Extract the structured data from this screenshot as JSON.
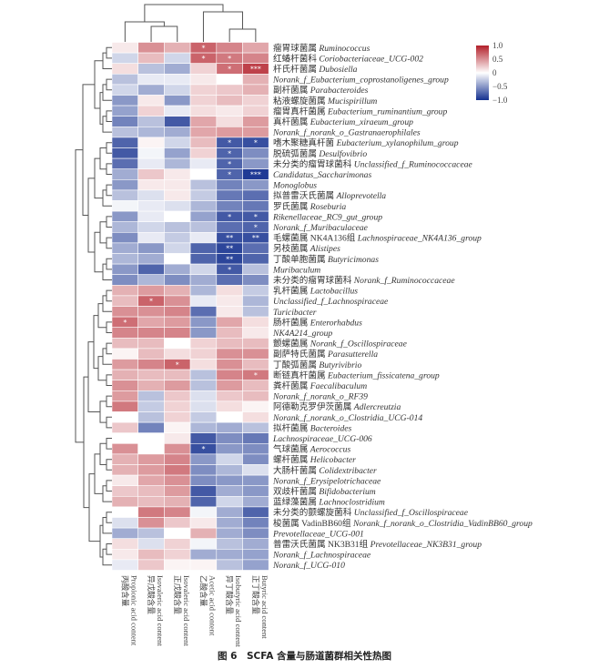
{
  "caption": "图 6　SCFA 含量与肠道菌群相关性热图",
  "chart_data": {
    "type": "heatmap",
    "columns": [
      {
        "cn": "丙酸含量",
        "en": "Propionic acid content"
      },
      {
        "cn": "异戊酸含量",
        "en": "Isovaleric acid content"
      },
      {
        "cn": "正戊酸含量",
        "en": "Isovaleric acid content"
      },
      {
        "cn": "乙酸含量",
        "en": "Acetic acid content"
      },
      {
        "cn": "异丁酸含量",
        "en": "Isobutyric acid content"
      },
      {
        "cn": "正丁酸含量",
        "en": "Butyric acid content"
      }
    ],
    "rows": [
      {
        "cn": "瘤胃球菌属",
        "en": "Ruminococcus",
        "values": [
          0.1,
          0.5,
          0.35,
          0.7,
          0.55,
          0.4
        ],
        "sig": [
          "",
          "",
          "",
          "*",
          "",
          ""
        ]
      },
      {
        "cn": "红蝽杆菌科",
        "en": "Coriobacteriaceae_UCG-002",
        "values": [
          -0.2,
          0.3,
          -0.2,
          0.7,
          0.6,
          0.55
        ],
        "sig": [
          "",
          "",
          "",
          "*",
          "*",
          ""
        ]
      },
      {
        "cn": "杆氏杆菌属",
        "en": "Dubosiella",
        "values": [
          0.15,
          -0.3,
          -0.4,
          0.2,
          0.65,
          0.85
        ],
        "sig": [
          "",
          "",
          "",
          "",
          "*",
          "***"
        ]
      },
      {
        "cn": "",
        "en": "Norank_f_Eubacterium_coprostanoligenes_group",
        "values": [
          -0.3,
          -0.1,
          -0.1,
          0.1,
          0.0,
          0.35
        ],
        "sig": [
          "",
          "",
          "",
          "",
          "",
          ""
        ]
      },
      {
        "cn": "副杆菌属",
        "en": "Parabacteroides",
        "values": [
          -0.2,
          -0.4,
          -0.2,
          0.2,
          0.25,
          0.35
        ],
        "sig": [
          "",
          "",
          "",
          "",
          "",
          ""
        ]
      },
      {
        "cn": "粘液螺旋菌属",
        "en": "Mucispirillum",
        "values": [
          -0.5,
          0.1,
          -0.5,
          0.2,
          0.3,
          0.2
        ],
        "sig": [
          "",
          "",
          "",
          "",
          "",
          ""
        ]
      },
      {
        "cn": "瘤胃真杆菌属",
        "en": "Eubacterium_ruminantium_group",
        "values": [
          -0.45,
          0.2,
          -0.1,
          0.15,
          0.1,
          0.2
        ],
        "sig": [
          "",
          "",
          "",
          "",
          "",
          ""
        ]
      },
      {
        "cn": "真杆菌属",
        "en": "Eubacterium_xiraeum_group",
        "values": [
          -0.6,
          -0.3,
          -0.8,
          0.4,
          0.15,
          0.45
        ],
        "sig": [
          "",
          "",
          "",
          "",
          "",
          ""
        ]
      },
      {
        "cn": "",
        "en": "Norank_f_norank_o_Gastranaerophilales",
        "values": [
          -0.3,
          -0.35,
          -0.4,
          0.4,
          0.45,
          0.45
        ],
        "sig": [
          "",
          "",
          "",
          "",
          "",
          ""
        ]
      },
      {
        "cn": "嗜木聚糖真杆菌",
        "en": "Eubacterium_xylanophilum_group",
        "values": [
          -0.75,
          0.05,
          -0.2,
          0.3,
          -0.8,
          -0.85
        ],
        "sig": [
          "",
          "",
          "",
          "",
          "*",
          "*"
        ]
      },
      {
        "cn": "脱硫弧菌属",
        "en": "Desulfovibrio",
        "values": [
          -0.8,
          -0.05,
          -0.45,
          0.2,
          -0.75,
          -0.55
        ],
        "sig": [
          "",
          "",
          "",
          "",
          "*",
          ""
        ]
      },
      {
        "cn": "未分类的瘤胃球菌科",
        "en": "Unclassified_f_Ruminococcaceae",
        "values": [
          -0.7,
          -0.1,
          -0.35,
          -0.1,
          -0.75,
          -0.5
        ],
        "sig": [
          "",
          "",
          "",
          "",
          "*",
          ""
        ]
      },
      {
        "cn": "",
        "en": "Candidatus_Saccharimonas",
        "values": [
          -0.4,
          0.25,
          0.1,
          0.0,
          -0.75,
          -0.95
        ],
        "sig": [
          "",
          "",
          "",
          "",
          "*",
          "***"
        ]
      },
      {
        "cn": "",
        "en": "Monoglobus",
        "values": [
          -0.5,
          0.1,
          0.1,
          -0.3,
          -0.6,
          -0.5
        ],
        "sig": [
          "",
          "",
          "",
          "",
          "",
          ""
        ]
      },
      {
        "cn": "拟普雷沃氏菌属",
        "en": "Alloprevotella",
        "values": [
          -0.3,
          -0.15,
          0.1,
          -0.25,
          -0.65,
          -0.7
        ],
        "sig": [
          "",
          "",
          "",
          "",
          "",
          ""
        ]
      },
      {
        "cn": "罗氏菌属",
        "en": "Roseburia",
        "values": [
          -0.05,
          -0.1,
          -0.15,
          -0.35,
          -0.6,
          -0.65
        ],
        "sig": [
          "",
          "",
          "",
          "",
          "",
          ""
        ]
      },
      {
        "cn": "",
        "en": "Rikenellaceae_RC9_gut_group",
        "values": [
          -0.5,
          -0.1,
          0.0,
          -0.45,
          -0.8,
          -0.8
        ],
        "sig": [
          "",
          "",
          "",
          "",
          "*",
          "*"
        ]
      },
      {
        "cn": "",
        "en": "Norank_f_Muribaculaceae",
        "values": [
          -0.35,
          -0.2,
          -0.3,
          -0.3,
          -0.7,
          -0.75
        ],
        "sig": [
          "",
          "",
          "",
          "",
          "",
          "*"
        ]
      },
      {
        "cn": "毛螺菌属 NK4A136组",
        "en": "Lachnospiraceae_NK4A136_group",
        "values": [
          -0.55,
          -0.1,
          -0.25,
          -0.1,
          -0.85,
          -0.85
        ],
        "sig": [
          "",
          "",
          "",
          "",
          "**",
          "**"
        ]
      },
      {
        "cn": "另枝菌属",
        "en": "Alistipes",
        "values": [
          -0.4,
          -0.5,
          -0.2,
          -0.75,
          -0.9,
          -0.7
        ],
        "sig": [
          "",
          "",
          "",
          "",
          "**",
          ""
        ]
      },
      {
        "cn": "丁酸单胞菌属",
        "en": "Butyricimonas",
        "values": [
          -0.35,
          -0.4,
          0.0,
          -0.75,
          -0.9,
          -0.75
        ],
        "sig": [
          "",
          "",
          "",
          "",
          "**",
          ""
        ]
      },
      {
        "cn": "",
        "en": "Muribaculum",
        "values": [
          -0.5,
          -0.75,
          -0.4,
          -0.2,
          -0.8,
          -0.3
        ],
        "sig": [
          "",
          "",
          "",
          "",
          "*",
          ""
        ]
      },
      {
        "cn": "未分类的瘤胃球菌科",
        "en": "Norank_f_Ruminococcaceae",
        "values": [
          -0.55,
          -0.35,
          -0.55,
          -0.4,
          -0.7,
          -0.55
        ],
        "sig": [
          "",
          "",
          "",
          "",
          "",
          ""
        ]
      },
      {
        "cn": "乳杆菌属",
        "en": "Lactobacillus",
        "values": [
          0.35,
          0.45,
          0.35,
          -0.35,
          0.15,
          -0.25
        ],
        "sig": [
          "",
          "",
          "",
          "",
          "",
          ""
        ]
      },
      {
        "cn": "",
        "en": "Unclassified_f_Lachnospiraceae",
        "values": [
          0.3,
          0.7,
          0.5,
          -0.1,
          0.1,
          -0.35
        ],
        "sig": [
          "",
          "*",
          "",
          "",
          "",
          ""
        ]
      },
      {
        "cn": "",
        "en": "Turicibacter",
        "values": [
          0.5,
          0.5,
          0.55,
          -0.7,
          0.1,
          -0.3
        ],
        "sig": [
          "",
          "",
          "",
          "",
          "",
          ""
        ]
      },
      {
        "cn": "肠杆菌属",
        "en": "Enterorhabdus",
        "values": [
          0.65,
          0.4,
          0.45,
          -0.5,
          0.4,
          0.15
        ],
        "sig": [
          "*",
          "",
          "",
          "",
          "",
          ""
        ]
      },
      {
        "cn": "",
        "en": "NK4A214_group",
        "values": [
          0.55,
          0.55,
          0.55,
          -0.5,
          0.3,
          0.1
        ],
        "sig": [
          "",
          "",
          "",
          "",
          "",
          ""
        ]
      },
      {
        "cn": "颤螺菌属",
        "en": "Norank_f_Oscillospiraceae",
        "values": [
          0.3,
          0.3,
          0.0,
          0.2,
          0.3,
          0.3
        ],
        "sig": [
          "",
          "",
          "",
          "",
          "",
          ""
        ]
      },
      {
        "cn": "副萨特氏菌属",
        "en": "Parasutterella",
        "values": [
          0.05,
          0.3,
          0.15,
          0.2,
          0.5,
          0.5
        ],
        "sig": [
          "",
          "",
          "",
          "",
          "",
          ""
        ]
      },
      {
        "cn": "丁酸弧菌属",
        "en": "Butyrivibrio",
        "values": [
          0.45,
          0.55,
          0.7,
          0.15,
          0.5,
          0.3
        ],
        "sig": [
          "",
          "",
          "*",
          "",
          "",
          ""
        ]
      },
      {
        "cn": "断链真杆菌属",
        "en": "Eubacterium_fissicatena_group",
        "values": [
          0.35,
          0.3,
          0.3,
          -0.3,
          0.55,
          0.6
        ],
        "sig": [
          "",
          "",
          "",
          "",
          "",
          "*"
        ]
      },
      {
        "cn": "粪杆菌属",
        "en": "Faecalibaculum",
        "values": [
          0.5,
          0.35,
          0.45,
          -0.3,
          0.45,
          0.3
        ],
        "sig": [
          "",
          "",
          "",
          "",
          "",
          ""
        ]
      },
      {
        "cn": "",
        "en": "Norank_f_norank_o_RF39",
        "values": [
          0.45,
          -0.3,
          0.25,
          -0.15,
          0.25,
          0.3
        ],
        "sig": [
          "",
          "",
          "",
          "",
          "",
          ""
        ]
      },
      {
        "cn": "阿德勒克罗伊茨菌属",
        "en": "Adlercreutzia",
        "values": [
          0.6,
          -0.25,
          0.2,
          -0.15,
          0.15,
          0.05
        ],
        "sig": [
          "",
          "",
          "",
          "",
          "",
          ""
        ]
      },
      {
        "cn": "",
        "en": "Norank_f_norank_o_Clostridia_UCG-014",
        "values": [
          0.0,
          -0.3,
          0.2,
          -0.25,
          0.0,
          0.15
        ],
        "sig": [
          "",
          "",
          "",
          "",
          "",
          ""
        ]
      },
      {
        "cn": "拟杆菌属",
        "en": "Bacteroides",
        "values": [
          0.25,
          -0.6,
          0.05,
          -0.35,
          -0.4,
          -0.3
        ],
        "sig": [
          "",
          "",
          "",
          "",
          "",
          ""
        ]
      },
      {
        "cn": "",
        "en": "Lachnospiraceae_UCG-006",
        "values": [
          0.0,
          0.0,
          0.1,
          -0.8,
          -0.55,
          -0.65
        ],
        "sig": [
          "",
          "",
          "",
          "",
          "",
          ""
        ]
      },
      {
        "cn": "气球菌属",
        "en": "Aerococcus",
        "values": [
          0.5,
          0.0,
          0.5,
          -0.85,
          -0.5,
          -0.55
        ],
        "sig": [
          "",
          "",
          "",
          "*",
          "",
          ""
        ]
      },
      {
        "cn": "螺杆菌属",
        "en": "Helicobacter",
        "values": [
          0.35,
          0.45,
          0.55,
          -0.5,
          -0.2,
          -0.55
        ],
        "sig": [
          "",
          "",
          "",
          "",
          "",
          ""
        ]
      },
      {
        "cn": "大肠杆菌属",
        "en": "Colidextribacter",
        "values": [
          0.35,
          0.45,
          0.6,
          -0.55,
          -0.35,
          -0.15
        ],
        "sig": [
          "",
          "",
          "",
          "",
          "",
          ""
        ]
      },
      {
        "cn": "",
        "en": "Norank_f_Erysipelotrichaceae",
        "values": [
          0.1,
          0.4,
          0.5,
          -0.55,
          -0.5,
          -0.5
        ],
        "sig": [
          "",
          "",
          "",
          "",
          "",
          ""
        ]
      },
      {
        "cn": "双歧杆菌属",
        "en": "Bifidobacterium",
        "values": [
          0.25,
          0.3,
          0.45,
          -0.8,
          -0.4,
          -0.5
        ],
        "sig": [
          "",
          "",
          "",
          "",
          "",
          ""
        ]
      },
      {
        "cn": "蓝绿藻菌属",
        "en": "Lachnoclostridium",
        "values": [
          0.35,
          0.3,
          0.35,
          -0.75,
          -0.2,
          -0.4
        ],
        "sig": [
          "",
          "",
          "",
          "",
          "",
          ""
        ]
      },
      {
        "cn": "未分类的颤螺旋菌科",
        "en": "Unclassified_f_Oscillospiraceae",
        "values": [
          0.0,
          0.6,
          0.55,
          -0.05,
          -0.4,
          -0.75
        ],
        "sig": [
          "",
          "",
          "",
          "",
          "",
          ""
        ]
      },
      {
        "cn": "梭菌属 VadinBB60组",
        "en": "Norank_f_norank_o_Clostridia_VadinBB60_group",
        "values": [
          -0.15,
          0.5,
          0.25,
          0.1,
          -0.4,
          -0.6
        ],
        "sig": [
          "",
          "",
          "",
          "",
          "",
          ""
        ]
      },
      {
        "cn": "",
        "en": "Prevotellaceae_UCG-001",
        "values": [
          -0.4,
          -0.3,
          0.0,
          0.35,
          -0.4,
          -0.55
        ],
        "sig": [
          "",
          "",
          "",
          "",
          "",
          ""
        ]
      },
      {
        "cn": "普雷沃氏菌属 NK3B31组",
        "en": "Prevotellaceae_NK3B31_group",
        "values": [
          0.15,
          -0.15,
          0.2,
          -0.05,
          -0.3,
          -0.4
        ],
        "sig": [
          "",
          "",
          "",
          "",
          "",
          ""
        ]
      },
      {
        "cn": "",
        "en": "Norank_f_Lachnospiraceae",
        "values": [
          0.1,
          0.3,
          0.2,
          -0.4,
          -0.4,
          -0.45
        ],
        "sig": [
          "",
          "",
          "",
          "",
          "",
          ""
        ]
      },
      {
        "cn": "",
        "en": "Norank_f_UCG-010",
        "values": [
          -0.1,
          0.25,
          0.05,
          0.05,
          -0.3,
          -0.45
        ],
        "sig": [
          "",
          "",
          "",
          "",
          "",
          ""
        ]
      }
    ],
    "color_scale": {
      "min": -1.0,
      "max": 1.0,
      "low_color": "#14308f",
      "mid_color": "#ffffff",
      "high_color": "#b3202a"
    },
    "legend": {
      "ticks": [
        "1.0",
        "0.5",
        "0",
        "−0.5",
        "−1.0"
      ],
      "values": [
        1.0,
        0.5,
        0,
        -0.5,
        -1.0
      ],
      "placement": "top-right"
    },
    "row_dendrogram": true,
    "column_dendrogram": true
  }
}
